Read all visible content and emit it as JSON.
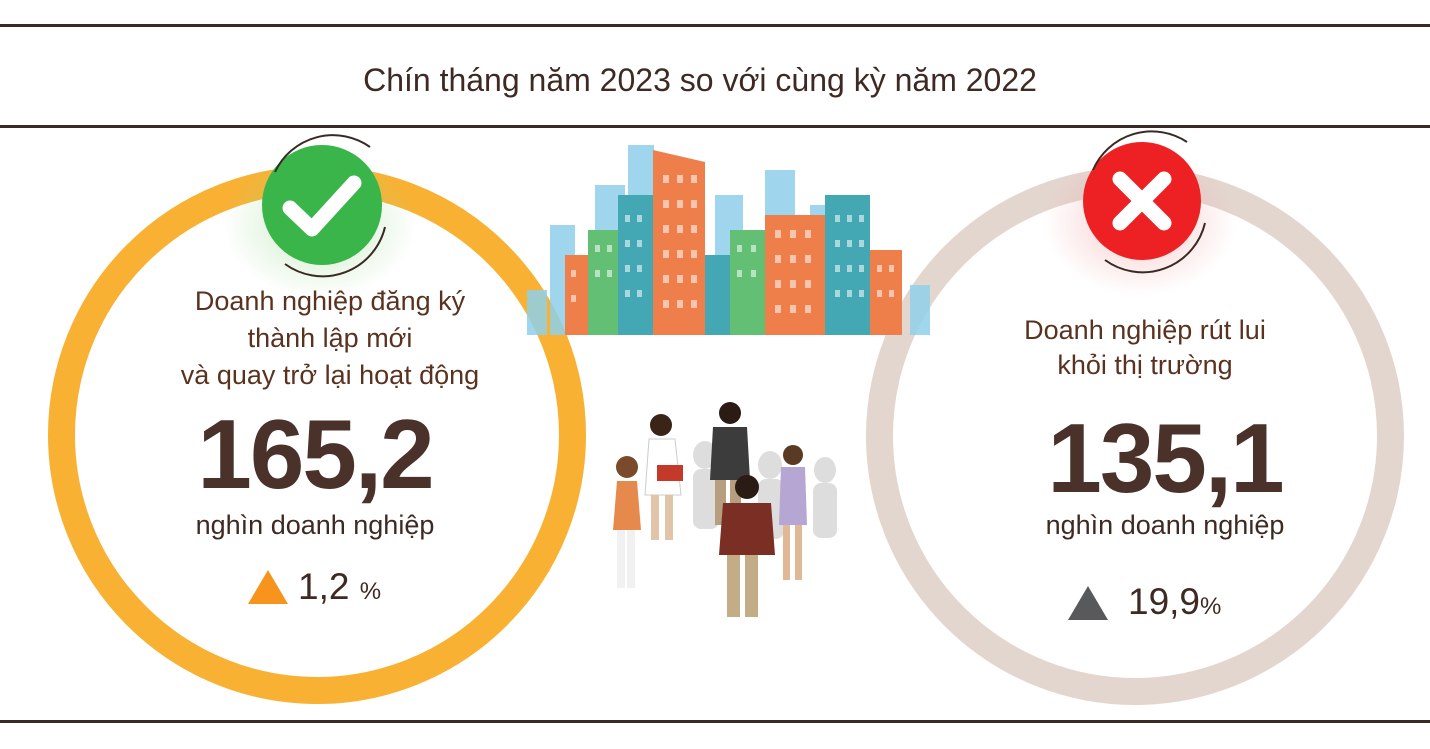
{
  "header": {
    "title": "Chín tháng năm 2023 so với cùng kỳ năm 2022"
  },
  "left": {
    "label_lines": [
      "Doanh nghiệp đăng ký",
      "thành lập mới",
      "và quay trở lại hoạt động"
    ],
    "value": "165,2",
    "unit": "nghìn doanh nghiệp",
    "change_value": "1,2",
    "change_unit": "%",
    "ring_color": "#f8b133",
    "badge_color": "#3ab54a",
    "badge_icon": "checkmark-icon",
    "triangle_color": "#f7941d"
  },
  "right": {
    "label_lines": [
      "Doanh nghiệp rút lui",
      "khỏi thị trường"
    ],
    "value": "135,1",
    "unit": "nghìn doanh nghiệp",
    "change_value": "19,9",
    "change_unit": "%",
    "ring_color": "#e3d6cf",
    "badge_color": "#ed2024",
    "badge_icon": "cross-icon",
    "triangle_color": "#58595b"
  },
  "illustrations": {
    "city": "city-skyline-icon",
    "people": "business-people-group-icon"
  }
}
